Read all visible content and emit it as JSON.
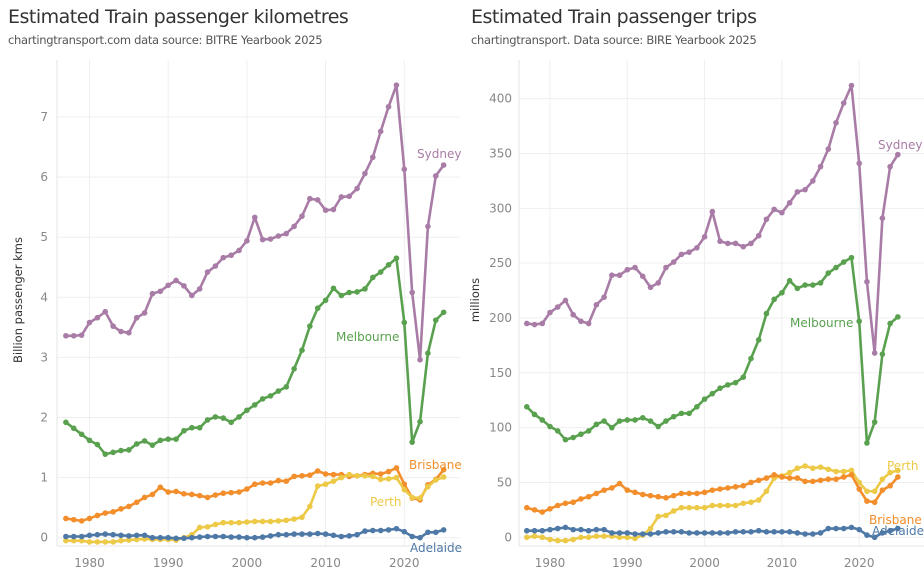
{
  "chart_data": [
    {
      "type": "line",
      "title": "Estimated Train passenger kilometres",
      "subtitle": "chartingtransport.com  data source: BITRE Yearbook 2025",
      "xlabel": "",
      "ylabel": "Billion passenger kms",
      "xlim": [
        1975.5,
        2027
      ],
      "ylim": [
        -0.15,
        7.9
      ],
      "xticks": [
        1980,
        1990,
        2000,
        2010,
        2020
      ],
      "yticks": [
        0,
        1,
        2,
        3,
        4,
        5,
        6,
        7
      ],
      "grid": true,
      "legend": "direct labels at line ends",
      "x_start": 1977,
      "x_end": 2025,
      "series": [
        {
          "name": "Sydney",
          "color": "#a87ca6",
          "values": [
            3.36,
            3.36,
            3.37,
            3.58,
            3.66,
            3.76,
            3.52,
            3.43,
            3.41,
            3.66,
            3.74,
            4.06,
            4.1,
            4.2,
            4.28,
            4.19,
            4.03,
            4.14,
            4.42,
            4.52,
            4.66,
            4.7,
            4.78,
            4.94,
            5.33,
            4.96,
            4.97,
            5.02,
            5.06,
            5.18,
            5.35,
            5.64,
            5.62,
            5.45,
            5.46,
            5.67,
            5.68,
            5.81,
            6.06,
            6.33,
            6.76,
            7.17,
            7.53,
            6.13,
            4.08,
            2.96,
            5.18,
            6.02,
            6.2
          ]
        },
        {
          "name": "Melbourne",
          "color": "#59a14f",
          "values": [
            1.92,
            1.82,
            1.72,
            1.62,
            1.55,
            1.39,
            1.42,
            1.45,
            1.46,
            1.56,
            1.61,
            1.54,
            1.62,
            1.64,
            1.64,
            1.78,
            1.83,
            1.83,
            1.96,
            2.01,
            1.99,
            1.92,
            2.01,
            2.12,
            2.21,
            2.31,
            2.36,
            2.44,
            2.51,
            2.81,
            3.12,
            3.52,
            3.82,
            3.95,
            4.15,
            4.03,
            4.08,
            4.09,
            4.14,
            4.33,
            4.42,
            4.54,
            4.65,
            3.58,
            1.59,
            1.93,
            3.07,
            3.62,
            3.75
          ]
        },
        {
          "name": "Brisbane",
          "color": "#f28e2b",
          "values": [
            0.32,
            0.3,
            0.28,
            0.32,
            0.37,
            0.41,
            0.43,
            0.48,
            0.52,
            0.59,
            0.67,
            0.72,
            0.84,
            0.76,
            0.77,
            0.73,
            0.72,
            0.7,
            0.67,
            0.71,
            0.74,
            0.75,
            0.76,
            0.81,
            0.89,
            0.91,
            0.91,
            0.95,
            0.94,
            1.02,
            1.03,
            1.04,
            1.11,
            1.06,
            1.05,
            1.05,
            1.02,
            1.03,
            1.05,
            1.07,
            1.06,
            1.1,
            1.16,
            0.89,
            0.66,
            0.63,
            0.88,
            0.97,
            1.13
          ]
        },
        {
          "name": "Perth",
          "color": "#edc948",
          "values": [
            -0.05,
            -0.05,
            -0.05,
            -0.07,
            -0.07,
            -0.07,
            -0.07,
            -0.05,
            -0.04,
            -0.03,
            -0.02,
            -0.03,
            -0.03,
            -0.03,
            -0.04,
            0.0,
            0.05,
            0.17,
            0.18,
            0.22,
            0.25,
            0.25,
            0.25,
            0.26,
            0.27,
            0.27,
            0.27,
            0.28,
            0.29,
            0.31,
            0.34,
            0.52,
            0.86,
            0.89,
            0.94,
            1.0,
            1.05,
            1.03,
            1.03,
            1.02,
            0.97,
            0.98,
            1.0,
            0.8,
            0.67,
            0.66,
            0.85,
            0.96,
            1.01
          ]
        },
        {
          "name": "Adelaide",
          "color": "#4e79a7",
          "values": [
            0.02,
            0.02,
            0.02,
            0.04,
            0.05,
            0.06,
            0.05,
            0.04,
            0.03,
            0.04,
            0.04,
            0.0,
            0.0,
            0.0,
            -0.01,
            -0.01,
            0.0,
            0.01,
            0.02,
            0.02,
            0.02,
            0.01,
            0.01,
            0.0,
            0.0,
            0.01,
            0.03,
            0.05,
            0.05,
            0.06,
            0.06,
            0.06,
            0.07,
            0.06,
            0.04,
            0.02,
            0.03,
            0.05,
            0.11,
            0.12,
            0.12,
            0.13,
            0.15,
            0.1,
            0.02,
            0.0,
            0.09,
            0.09,
            0.13
          ]
        }
      ]
    },
    {
      "type": "line",
      "title": "Estimated Train passenger trips",
      "subtitle": "chartingtransport. Data source: BIRE Yearbook 2025",
      "xlabel": "",
      "ylabel": "millions",
      "xlim": [
        1975.5,
        2027
      ],
      "ylim": [
        -8,
        440
      ],
      "xticks": [
        1980,
        1990,
        2000,
        2010,
        2020
      ],
      "yticks": [
        0,
        50,
        100,
        150,
        200,
        250,
        300,
        350,
        400
      ],
      "grid": true,
      "legend": "direct labels at line ends",
      "x_start": 1977,
      "x_end": 2025,
      "series": [
        {
          "name": "Sydney",
          "color": "#a87ca6",
          "values": [
            195,
            194,
            195,
            205,
            210,
            216,
            203,
            197,
            195,
            212,
            219,
            239,
            239,
            244,
            246,
            238,
            228,
            232,
            246,
            251,
            258,
            260,
            264,
            274,
            297,
            270,
            268,
            268,
            265,
            268,
            275,
            290,
            299,
            296,
            305,
            315,
            317,
            325,
            338,
            354,
            378,
            396,
            412,
            341,
            233,
            168,
            291,
            338,
            349
          ]
        },
        {
          "name": "Melbourne",
          "color": "#59a14f",
          "values": [
            119,
            112,
            107,
            101,
            97,
            89,
            91,
            94,
            97,
            103,
            106,
            100,
            106,
            107,
            107,
            109,
            106,
            101,
            106,
            110,
            113,
            113,
            119,
            126,
            131,
            136,
            139,
            141,
            146,
            163,
            180,
            204,
            217,
            223,
            234,
            227,
            230,
            230,
            232,
            241,
            246,
            251,
            255,
            197,
            86,
            105,
            167,
            195,
            201
          ]
        },
        {
          "name": "Perth",
          "color": "#edc948",
          "values": [
            0,
            1,
            0,
            -2,
            -3,
            -3,
            -2,
            0,
            0,
            1,
            1,
            1,
            0,
            0,
            -1,
            2,
            8,
            19,
            20,
            24,
            27,
            27,
            27,
            27,
            29,
            29,
            29,
            29,
            31,
            32,
            34,
            42,
            54,
            56,
            59,
            63,
            65,
            63,
            64,
            62,
            60,
            60,
            61,
            50,
            42,
            42,
            53,
            59,
            61
          ]
        },
        {
          "name": "Brisbane",
          "color": "#f28e2b",
          "values": [
            27,
            25,
            23,
            26,
            29,
            31,
            32,
            35,
            37,
            40,
            43,
            45,
            49,
            43,
            41,
            39,
            38,
            37,
            36,
            38,
            40,
            40,
            40,
            41,
            43,
            44,
            45,
            46,
            47,
            50,
            52,
            54,
            57,
            55,
            54,
            54,
            51,
            51,
            52,
            53,
            53,
            55,
            57,
            44,
            33,
            32,
            43,
            47,
            55
          ]
        },
        {
          "name": "Adelaide",
          "color": "#4e79a7",
          "values": [
            6,
            6,
            6,
            7,
            8,
            9,
            7,
            7,
            6,
            7,
            7,
            4,
            4,
            4,
            3,
            3,
            3,
            4,
            5,
            5,
            5,
            4,
            4,
            4,
            4,
            4,
            4,
            5,
            5,
            5,
            6,
            5,
            5,
            5,
            5,
            4,
            3,
            3,
            4,
            8,
            8,
            8,
            9,
            7,
            2,
            0,
            4,
            6,
            8
          ]
        }
      ]
    }
  ]
}
